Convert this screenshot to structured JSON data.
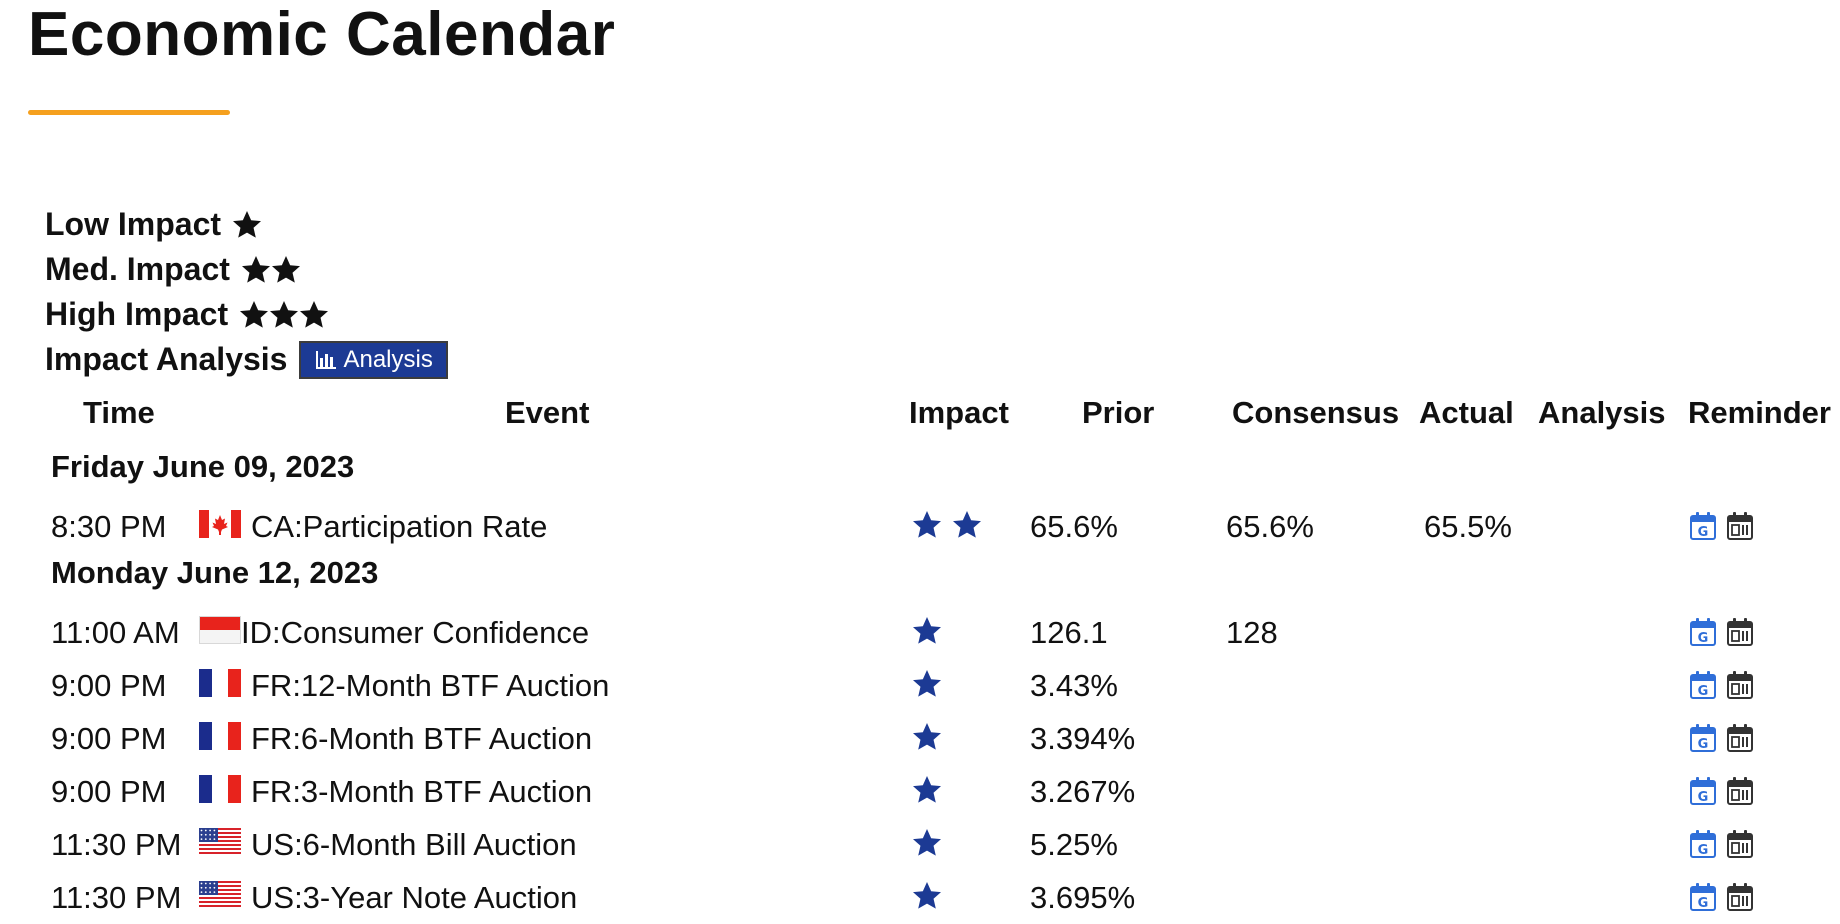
{
  "page": {
    "title": "Economic Calendar"
  },
  "colors": {
    "underline": "#f5a01e",
    "star_table": "#1c3a94",
    "star_legend": "#111111",
    "analysis_button_bg": "#1c3a94",
    "google_calendar_icon": "#2f6ed8",
    "outlook_calendar_icon": "#333333"
  },
  "legend": {
    "low_label": "Low Impact",
    "med_label": "Med. Impact",
    "high_label": "High Impact",
    "analysis_label": "Impact Analysis",
    "analysis_button": "Analysis"
  },
  "table": {
    "headers": {
      "time": "Time",
      "event": "Event",
      "impact": "Impact",
      "prior": "Prior",
      "consensus": "Consensus",
      "actual": "Actual",
      "analysis": "Analysis",
      "reminder": "Reminder"
    },
    "groups": [
      {
        "date": "Friday June 09, 2023",
        "events": [
          {
            "time": "8:30 PM",
            "flag": "flag-canada",
            "event": "CA:Participation Rate",
            "impact": 2,
            "prior": "65.6%",
            "consensus": "65.6%",
            "actual": "65.5%"
          }
        ]
      },
      {
        "date": "Monday June 12, 2023",
        "events": [
          {
            "time": "11:00 AM",
            "flag": "flag-indonesia",
            "event": "ID:Consumer Confidence",
            "impact": 1,
            "prior": "126.1",
            "consensus": "128",
            "actual": ""
          },
          {
            "time": "9:00 PM",
            "flag": "flag-france",
            "event": "FR:12-Month BTF Auction",
            "impact": 1,
            "prior": "3.43%",
            "consensus": "",
            "actual": ""
          },
          {
            "time": "9:00 PM",
            "flag": "flag-france",
            "event": "FR:6-Month BTF Auction",
            "impact": 1,
            "prior": "3.394%",
            "consensus": "",
            "actual": ""
          },
          {
            "time": "9:00 PM",
            "flag": "flag-france",
            "event": "FR:3-Month BTF Auction",
            "impact": 1,
            "prior": "3.267%",
            "consensus": "",
            "actual": ""
          },
          {
            "time": "11:30 PM",
            "flag": "flag-usa",
            "event": "US:6-Month Bill Auction",
            "impact": 1,
            "prior": "5.25%",
            "consensus": "",
            "actual": ""
          },
          {
            "time": "11:30 PM",
            "flag": "flag-usa",
            "event": "US:3-Year Note Auction",
            "impact": 1,
            "prior": "3.695%",
            "consensus": "",
            "actual": ""
          }
        ]
      }
    ]
  }
}
